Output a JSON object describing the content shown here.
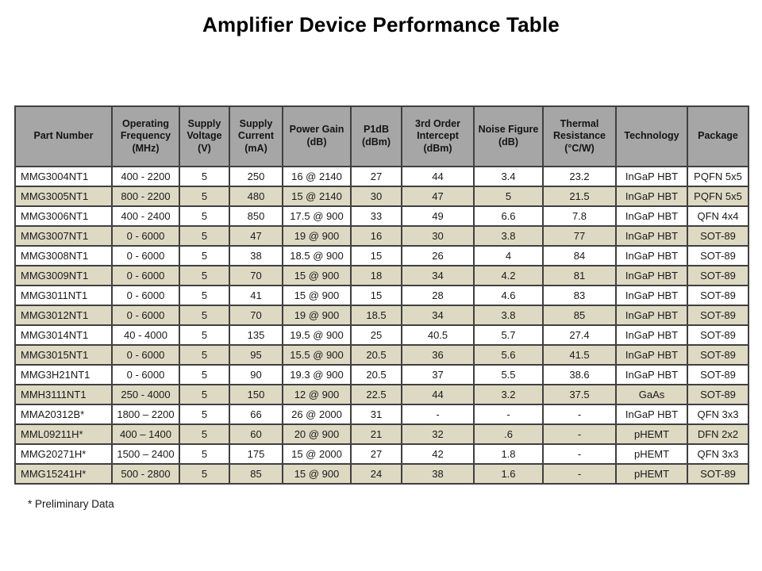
{
  "title": "Amplifier Device Performance Table",
  "footnote": "* Preliminary Data",
  "colors": {
    "header_bg": "#a6a6a6",
    "row_alt_bg": "#ddd9c3",
    "border": "#404040",
    "text": "#1a1a1a"
  },
  "table": {
    "columns": [
      "Part Number",
      "Operating Frequency (MHz)",
      "Supply Voltage (V)",
      "Supply Current (mA)",
      "Power Gain (dB)",
      "P1dB (dBm)",
      "3rd Order Intercept (dBm)",
      "Noise Figure (dB)",
      "Thermal Resistance (°C/W)",
      "Technology",
      "Package"
    ],
    "rows": [
      [
        "MMG3004NT1",
        "400 - 2200",
        "5",
        "250",
        "16 @ 2140",
        "27",
        "44",
        "3.4",
        "23.2",
        "InGaP HBT",
        "PQFN 5x5"
      ],
      [
        "MMG3005NT1",
        "800 - 2200",
        "5",
        "480",
        "15 @ 2140",
        "30",
        "47",
        "5",
        "21.5",
        "InGaP HBT",
        "PQFN 5x5"
      ],
      [
        "MMG3006NT1",
        "400 - 2400",
        "5",
        "850",
        "17.5 @ 900",
        "33",
        "49",
        "6.6",
        "7.8",
        "InGaP HBT",
        "QFN 4x4"
      ],
      [
        "MMG3007NT1",
        "0 - 6000",
        "5",
        "47",
        "19 @ 900",
        "16",
        "30",
        "3.8",
        "77",
        "InGaP HBT",
        "SOT-89"
      ],
      [
        "MMG3008NT1",
        "0 - 6000",
        "5",
        "38",
        "18.5 @ 900",
        "15",
        "26",
        "4",
        "84",
        "InGaP HBT",
        "SOT-89"
      ],
      [
        "MMG3009NT1",
        "0 - 6000",
        "5",
        "70",
        "15 @ 900",
        "18",
        "34",
        "4.2",
        "81",
        "InGaP HBT",
        "SOT-89"
      ],
      [
        "MMG3011NT1",
        "0 - 6000",
        "5",
        "41",
        "15 @ 900",
        "15",
        "28",
        "4.6",
        "83",
        "InGaP HBT",
        "SOT-89"
      ],
      [
        "MMG3012NT1",
        "0 - 6000",
        "5",
        "70",
        "19 @ 900",
        "18.5",
        "34",
        "3.8",
        "85",
        "InGaP HBT",
        "SOT-89"
      ],
      [
        "MMG3014NT1",
        "40 - 4000",
        "5",
        "135",
        "19.5 @ 900",
        "25",
        "40.5",
        "5.7",
        "27.4",
        "InGaP HBT",
        "SOT-89"
      ],
      [
        "MMG3015NT1",
        "0 - 6000",
        "5",
        "95",
        "15.5 @ 900",
        "20.5",
        "36",
        "5.6",
        "41.5",
        "InGaP HBT",
        "SOT-89"
      ],
      [
        "MMG3H21NT1",
        "0 - 6000",
        "5",
        "90",
        "19.3 @ 900",
        "20.5",
        "37",
        "5.5",
        "38.6",
        "InGaP HBT",
        "SOT-89"
      ],
      [
        "MMH3111NT1",
        "250 - 4000",
        "5",
        "150",
        "12 @ 900",
        "22.5",
        "44",
        "3.2",
        "37.5",
        "GaAs",
        "SOT-89"
      ],
      [
        "MMA20312B*",
        "1800 – 2200",
        "5",
        "66",
        "26 @ 2000",
        "31",
        "-",
        "-",
        "-",
        "InGaP HBT",
        "QFN 3x3"
      ],
      [
        "MML09211H*",
        "400 – 1400",
        "5",
        "60",
        "20 @ 900",
        "21",
        "32",
        ".6",
        "-",
        "pHEMT",
        "DFN 2x2"
      ],
      [
        "MMG20271H*",
        "1500 – 2400",
        "5",
        "175",
        "15 @ 2000",
        "27",
        "42",
        "1.8",
        "-",
        "pHEMT",
        "QFN 3x3"
      ],
      [
        "MMG15241H*",
        "500 - 2800",
        "5",
        "85",
        "15 @ 900",
        "24",
        "38",
        "1.6",
        "-",
        "pHEMT",
        "SOT-89"
      ]
    ]
  }
}
